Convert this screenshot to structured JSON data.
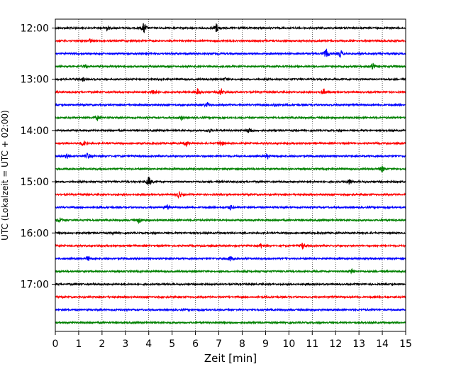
{
  "chart_data": {
    "type": "line",
    "title": "",
    "xlabel": "Zeit  [min]",
    "ylabel": "UTC (Lokalzeit = UTC + 02:00)",
    "xlim": [
      0,
      15
    ],
    "x_ticks": [
      0,
      1,
      2,
      3,
      4,
      5,
      6,
      7,
      8,
      9,
      10,
      11,
      12,
      13,
      14,
      15
    ],
    "x_grid": "dotted vertical lines at each minute",
    "y_ticks": [
      "12:00",
      "13:00",
      "14:00",
      "15:00",
      "16:00",
      "17:00"
    ],
    "row_minutes": 15,
    "colors": [
      "#000000",
      "#ff0000",
      "#0000ff",
      "#008000"
    ],
    "rows": [
      {
        "start": "12:00",
        "color": "#000000",
        "events": [
          [
            3.8,
            1.0
          ],
          [
            6.9,
            0.8
          ],
          [
            2.2,
            0.4
          ]
        ]
      },
      {
        "start": "12:15",
        "color": "#ff0000",
        "events": [
          [
            1.5,
            0.3
          ]
        ]
      },
      {
        "start": "12:30",
        "color": "#0000ff",
        "events": [
          [
            11.6,
            0.8
          ],
          [
            12.2,
            0.6
          ]
        ]
      },
      {
        "start": "12:45",
        "color": "#008000",
        "events": [
          [
            13.6,
            0.6
          ],
          [
            1.3,
            0.3
          ]
        ]
      },
      {
        "start": "13:00",
        "color": "#000000",
        "events": [
          [
            7.3,
            0.3
          ],
          [
            1.2,
            0.3
          ]
        ]
      },
      {
        "start": "13:15",
        "color": "#ff0000",
        "events": [
          [
            6.1,
            0.6
          ],
          [
            7.1,
            0.6
          ],
          [
            4.2,
            0.5
          ],
          [
            11.5,
            0.5
          ]
        ]
      },
      {
        "start": "13:30",
        "color": "#0000ff",
        "events": [
          [
            6.5,
            0.4
          ],
          [
            9.4,
            0.3
          ]
        ]
      },
      {
        "start": "13:45",
        "color": "#008000",
        "events": [
          [
            1.8,
            0.4
          ],
          [
            5.4,
            0.3
          ]
        ]
      },
      {
        "start": "14:00",
        "color": "#000000",
        "events": [
          [
            8.3,
            0.5
          ],
          [
            6.6,
            0.3
          ]
        ]
      },
      {
        "start": "14:15",
        "color": "#ff0000",
        "events": [
          [
            1.2,
            0.6
          ],
          [
            5.6,
            0.5
          ],
          [
            7.1,
            0.5
          ]
        ]
      },
      {
        "start": "14:30",
        "color": "#0000ff",
        "events": [
          [
            0.5,
            0.5
          ],
          [
            1.4,
            0.5
          ],
          [
            9.1,
            0.4
          ]
        ]
      },
      {
        "start": "14:45",
        "color": "#008000",
        "events": [
          [
            14.0,
            0.5
          ]
        ]
      },
      {
        "start": "15:00",
        "color": "#000000",
        "events": [
          [
            4.0,
            0.9
          ],
          [
            12.6,
            0.5
          ]
        ]
      },
      {
        "start": "15:15",
        "color": "#ff0000",
        "events": [
          [
            5.3,
            0.6
          ]
        ]
      },
      {
        "start": "15:30",
        "color": "#0000ff",
        "events": [
          [
            4.8,
            0.4
          ],
          [
            7.5,
            0.4
          ]
        ]
      },
      {
        "start": "15:45",
        "color": "#008000",
        "events": [
          [
            0.2,
            0.5
          ],
          [
            3.6,
            0.5
          ]
        ]
      },
      {
        "start": "16:00",
        "color": "#000000",
        "events": [
          [
            2.5,
            0.2
          ]
        ]
      },
      {
        "start": "16:15",
        "color": "#ff0000",
        "events": [
          [
            10.6,
            0.6
          ],
          [
            8.8,
            0.3
          ]
        ]
      },
      {
        "start": "16:30",
        "color": "#0000ff",
        "events": [
          [
            1.4,
            0.4
          ],
          [
            7.5,
            0.4
          ]
        ]
      },
      {
        "start": "16:45",
        "color": "#008000",
        "events": [
          [
            12.7,
            0.4
          ]
        ]
      },
      {
        "start": "17:00",
        "color": "#000000",
        "events": []
      },
      {
        "start": "17:15",
        "color": "#ff0000",
        "events": []
      },
      {
        "start": "17:30",
        "color": "#0000ff",
        "events": []
      },
      {
        "start": "17:45",
        "color": "#008000",
        "events": []
      }
    ]
  }
}
